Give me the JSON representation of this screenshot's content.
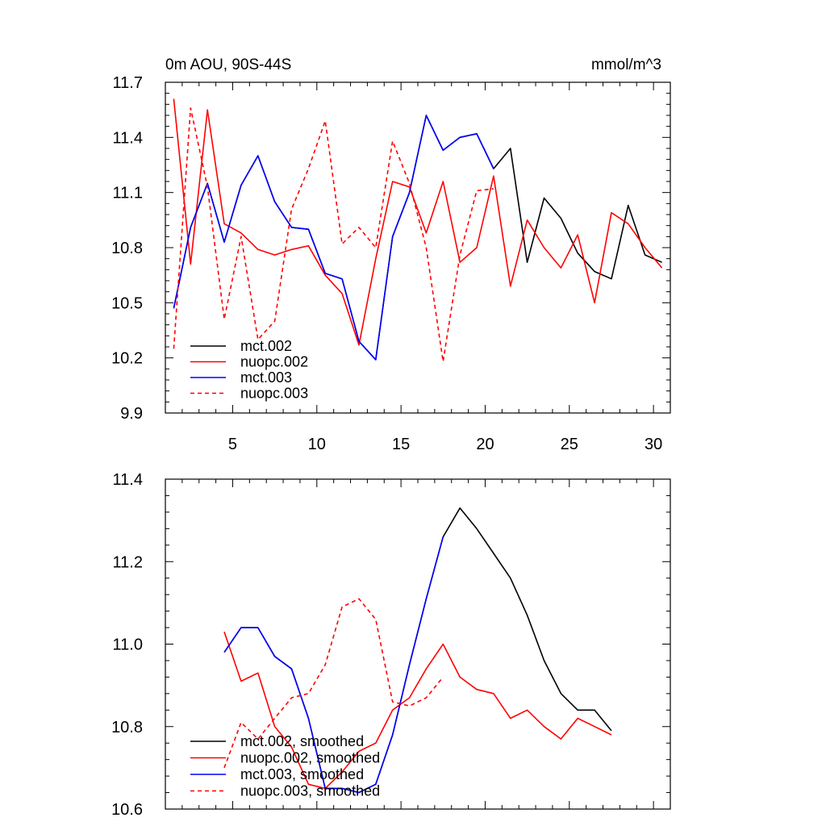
{
  "chart_data": [
    {
      "type": "line",
      "title": "0m AOU, 90S-44S",
      "units": "mmol/m^3",
      "xlabel": "",
      "ylabel": "",
      "xlim": [
        1,
        31
      ],
      "ylim": [
        9.9,
        11.7
      ],
      "xticks": [
        5,
        10,
        15,
        20,
        25,
        30
      ],
      "xtick_labels": [
        "5",
        "10",
        "15",
        "20",
        "25",
        "30"
      ],
      "yticks": [
        9.9,
        10.2,
        10.5,
        10.8,
        11.1,
        11.4,
        11.7
      ],
      "ytick_labels": [
        "9.9",
        "10.2",
        "10.5",
        "10.8",
        "11.1",
        "11.4",
        "11.7"
      ],
      "legend_position": "bottom-left",
      "series": [
        {
          "name": "mct.002",
          "color": "#000000",
          "dash": "solid",
          "x": [
            1.5,
            2.5,
            3.5,
            4.5,
            5.5,
            6.5,
            7.5,
            8.5,
            9.5,
            10.5,
            11.5,
            12.5,
            13.5,
            14.5,
            15.5,
            16.5,
            17.5,
            18.5,
            19.5,
            20.5,
            21.5,
            22.5,
            23.5,
            24.5,
            25.5,
            26.5,
            27.5,
            28.5,
            29.5,
            30.5
          ],
          "values": [
            10.47,
            10.91,
            11.15,
            10.83,
            11.14,
            11.3,
            11.05,
            10.91,
            10.9,
            10.66,
            10.63,
            10.29,
            10.19,
            10.86,
            11.1,
            11.52,
            11.33,
            11.4,
            11.42,
            11.23,
            11.34,
            10.72,
            11.07,
            10.96,
            10.77,
            10.67,
            10.63,
            11.03,
            10.76,
            10.72
          ]
        },
        {
          "name": "nuopc.002",
          "color": "#ff0000",
          "dash": "solid",
          "x": [
            1.5,
            2.5,
            3.5,
            4.5,
            5.5,
            6.5,
            7.5,
            8.5,
            9.5,
            10.5,
            11.5,
            12.5,
            13.5,
            14.5,
            15.5,
            16.5,
            17.5,
            18.5,
            19.5,
            20.5,
            21.5,
            22.5,
            23.5,
            24.5,
            25.5,
            26.5,
            27.5,
            28.5,
            29.5,
            30.5
          ],
          "values": [
            11.61,
            10.71,
            11.55,
            10.93,
            10.88,
            10.79,
            10.76,
            10.79,
            10.81,
            10.65,
            10.55,
            10.27,
            10.74,
            11.16,
            11.13,
            10.88,
            11.16,
            10.72,
            10.8,
            11.19,
            10.59,
            10.95,
            10.8,
            10.69,
            10.87,
            10.5,
            10.99,
            10.93,
            10.8,
            10.69
          ]
        },
        {
          "name": "mct.003",
          "color": "#0000ff",
          "dash": "solid",
          "x": [
            1.5,
            2.5,
            3.5,
            4.5,
            5.5,
            6.5,
            7.5,
            8.5,
            9.5,
            10.5,
            11.5,
            12.5,
            13.5,
            14.5,
            15.5,
            16.5,
            17.5,
            18.5,
            19.5,
            20.5
          ],
          "values": [
            10.47,
            10.91,
            11.15,
            10.83,
            11.14,
            11.3,
            11.05,
            10.91,
            10.9,
            10.66,
            10.63,
            10.29,
            10.19,
            10.86,
            11.1,
            11.52,
            11.33,
            11.4,
            11.42,
            11.23
          ]
        },
        {
          "name": "nuopc.003",
          "color": "#ff0000",
          "dash": "dashed",
          "x": [
            1.5,
            2.5,
            3.5,
            4.5,
            5.5,
            6.5,
            7.5,
            8.5,
            9.5,
            10.5,
            11.5,
            12.5,
            13.5,
            14.5,
            15.5,
            16.5,
            17.5,
            18.5,
            19.5,
            20.5
          ],
          "values": [
            10.25,
            11.56,
            11.13,
            10.41,
            10.86,
            10.3,
            10.4,
            11.01,
            11.23,
            11.49,
            10.82,
            10.91,
            10.8,
            11.38,
            11.15,
            10.8,
            10.18,
            10.76,
            11.11,
            11.12
          ]
        }
      ]
    },
    {
      "type": "line",
      "title": "",
      "xlabel": "",
      "ylabel": "",
      "xlim": [
        1,
        31
      ],
      "ylim": [
        10.6,
        11.4
      ],
      "xticks": [
        5,
        10,
        15,
        20,
        25,
        30
      ],
      "xtick_labels": [],
      "yticks": [
        10.6,
        10.8,
        11.0,
        11.2,
        11.4
      ],
      "ytick_labels": [
        "10.6",
        "10.8",
        "11.0",
        "11.2",
        "11.4"
      ],
      "legend_position": "bottom-left",
      "series": [
        {
          "name": "mct.002, smoothed",
          "color": "#000000",
          "dash": "solid",
          "x": [
            4.5,
            5.5,
            6.5,
            7.5,
            8.5,
            9.5,
            10.5,
            11.5,
            12.5,
            13.5,
            14.5,
            15.5,
            16.5,
            17.5,
            18.5,
            19.5,
            20.5,
            21.5,
            22.5,
            23.5,
            24.5,
            25.5,
            26.5,
            27.5
          ],
          "values": [
            10.98,
            11.04,
            11.04,
            10.97,
            10.94,
            10.82,
            10.65,
            10.65,
            10.64,
            10.66,
            10.78,
            10.95,
            11.11,
            11.26,
            11.33,
            11.28,
            11.22,
            11.16,
            11.07,
            10.96,
            10.88,
            10.84,
            10.84,
            10.79
          ]
        },
        {
          "name": "nuopc.002, smoothed",
          "color": "#ff0000",
          "dash": "solid",
          "x": [
            4.5,
            5.5,
            6.5,
            7.5,
            8.5,
            9.5,
            10.5,
            11.5,
            12.5,
            13.5,
            14.5,
            15.5,
            16.5,
            17.5,
            18.5,
            19.5,
            20.5,
            21.5,
            22.5,
            23.5,
            24.5,
            25.5,
            26.5,
            27.5
          ],
          "values": [
            11.03,
            10.91,
            10.93,
            10.8,
            10.75,
            10.66,
            10.65,
            10.69,
            10.74,
            10.76,
            10.84,
            10.87,
            10.94,
            11.0,
            10.92,
            10.89,
            10.88,
            10.82,
            10.84,
            10.8,
            10.77,
            10.82,
            10.8,
            10.78
          ]
        },
        {
          "name": "mct.003, smoothed",
          "color": "#0000ff",
          "dash": "solid",
          "x": [
            4.5,
            5.5,
            6.5,
            7.5,
            8.5,
            9.5,
            10.5,
            11.5,
            12.5,
            13.5,
            14.5,
            15.5,
            16.5,
            17.5
          ],
          "values": [
            10.98,
            11.04,
            11.04,
            10.97,
            10.94,
            10.82,
            10.65,
            10.65,
            10.64,
            10.66,
            10.78,
            10.95,
            11.11,
            11.26
          ]
        },
        {
          "name": "nuopc.003, smoothed",
          "color": "#ff0000",
          "dash": "dashed",
          "x": [
            4.5,
            5.5,
            6.5,
            7.5,
            8.5,
            9.5,
            10.5,
            11.5,
            12.5,
            13.5,
            14.5,
            15.5,
            16.5,
            17.5
          ],
          "values": [
            10.7,
            10.81,
            10.77,
            10.82,
            10.87,
            10.88,
            10.95,
            11.09,
            11.11,
            11.06,
            10.86,
            10.85,
            10.87,
            10.92
          ]
        }
      ]
    }
  ]
}
